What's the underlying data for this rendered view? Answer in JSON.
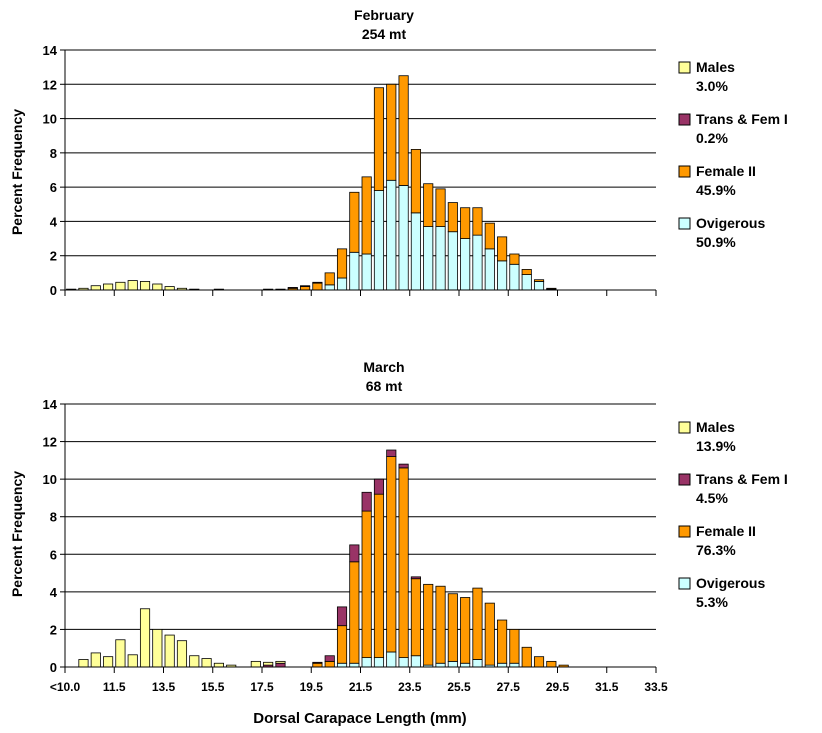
{
  "x_axis": {
    "label": "Dorsal Carapace Length (mm)",
    "tick_labels": [
      "<10.0",
      "11.5",
      "13.5",
      "15.5",
      "17.5",
      "19.5",
      "21.5",
      "23.5",
      "25.5",
      "27.5",
      "29.5",
      "31.5",
      "33.5"
    ]
  },
  "colors": {
    "males": "#ffff99",
    "trans": "#993366",
    "female2": "#ff9900",
    "ovigerous": "#ccffff",
    "outline": "#000000"
  },
  "chart_data": [
    {
      "type": "bar",
      "stacked": true,
      "title": "February",
      "subtitle": "254 mt",
      "ylabel": "Percent Frequency",
      "ylim": [
        0,
        14
      ],
      "yticks": [
        0,
        2,
        4,
        6,
        8,
        10,
        12,
        14
      ],
      "grid": true,
      "legend_position": "right",
      "categories": [
        "10.0",
        "10.5",
        "11.0",
        "11.5",
        "12.0",
        "12.5",
        "13.0",
        "13.5",
        "14.0",
        "14.5",
        "15.0",
        "15.5",
        "16.0",
        "16.5",
        "17.0",
        "17.5",
        "18.0",
        "18.5",
        "19.0",
        "19.5",
        "20.0",
        "20.5",
        "21.0",
        "21.5",
        "22.0",
        "22.5",
        "23.0",
        "23.5",
        "24.0",
        "24.5",
        "25.0",
        "25.5",
        "26.0",
        "26.5",
        "27.0",
        "27.5",
        "28.0",
        "28.5",
        "29.0",
        "29.5",
        "30.0",
        "30.5",
        "31.0",
        "31.5",
        "32.0",
        "32.5",
        "33.0",
        "33.5"
      ],
      "series": [
        {
          "name": "Males",
          "pct": "3.0%",
          "color": "#ffff99",
          "values": [
            0.05,
            0.1,
            0.25,
            0.35,
            0.45,
            0.55,
            0.5,
            0.35,
            0.2,
            0.1,
            0.05,
            0,
            0.05,
            0,
            0,
            0,
            0.05,
            0.05,
            0,
            0,
            0,
            0,
            0,
            0,
            0,
            0,
            0,
            0,
            0,
            0,
            0,
            0,
            0,
            0,
            0,
            0,
            0,
            0,
            0,
            0,
            0,
            0,
            0,
            0,
            0,
            0,
            0,
            0
          ]
        },
        {
          "name": "Trans & Fem I",
          "pct": "0.2%",
          "color": "#993366",
          "values": [
            0,
            0,
            0,
            0,
            0,
            0,
            0,
            0,
            0,
            0,
            0,
            0,
            0,
            0,
            0,
            0,
            0,
            0,
            0.05,
            0.05,
            0.05,
            0,
            0,
            0,
            0,
            0,
            0,
            0,
            0,
            0,
            0,
            0,
            0,
            0,
            0,
            0,
            0,
            0,
            0,
            0,
            0,
            0,
            0,
            0,
            0,
            0,
            0,
            0
          ]
        },
        {
          "name": "Female II",
          "pct": "45.9%",
          "color": "#ff9900",
          "values": [
            0,
            0,
            0,
            0,
            0,
            0,
            0,
            0,
            0,
            0,
            0,
            0,
            0,
            0,
            0,
            0,
            0,
            0,
            0.1,
            0.2,
            0.4,
            0.7,
            1.7,
            3.5,
            4.5,
            6.0,
            5.6,
            6.4,
            3.7,
            2.5,
            2.2,
            1.7,
            1.8,
            1.6,
            1.5,
            1.4,
            0.6,
            0.3,
            0.1,
            0.05,
            0,
            0,
            0,
            0,
            0,
            0,
            0,
            0
          ]
        },
        {
          "name": "Ovigerous",
          "pct": "50.9%",
          "color": "#ccffff",
          "values": [
            0,
            0,
            0,
            0,
            0,
            0,
            0,
            0,
            0,
            0,
            0,
            0,
            0,
            0,
            0,
            0,
            0,
            0,
            0,
            0,
            0,
            0.3,
            0.7,
            2.2,
            2.1,
            5.8,
            6.4,
            6.1,
            4.5,
            3.7,
            3.7,
            3.4,
            3.0,
            3.2,
            2.4,
            1.7,
            1.5,
            0.9,
            0.5,
            0.05,
            0,
            0,
            0,
            0,
            0,
            0,
            0,
            0
          ]
        }
      ]
    },
    {
      "type": "bar",
      "stacked": true,
      "title": "March",
      "subtitle": "68 mt",
      "ylabel": "Percent Frequency",
      "ylim": [
        0,
        14
      ],
      "yticks": [
        0,
        2,
        4,
        6,
        8,
        10,
        12,
        14
      ],
      "grid": true,
      "legend_position": "right",
      "categories": [
        "10.0",
        "10.5",
        "11.0",
        "11.5",
        "12.0",
        "12.5",
        "13.0",
        "13.5",
        "14.0",
        "14.5",
        "15.0",
        "15.5",
        "16.0",
        "16.5",
        "17.0",
        "17.5",
        "18.0",
        "18.5",
        "19.0",
        "19.5",
        "20.0",
        "20.5",
        "21.0",
        "21.5",
        "22.0",
        "22.5",
        "23.0",
        "23.5",
        "24.0",
        "24.5",
        "25.0",
        "25.5",
        "26.0",
        "26.5",
        "27.0",
        "27.5",
        "28.0",
        "28.5",
        "29.0",
        "29.5",
        "30.0",
        "30.5",
        "31.0",
        "31.5",
        "32.0",
        "32.5",
        "33.0",
        "33.5"
      ],
      "series": [
        {
          "name": "Males",
          "pct": "13.9%",
          "color": "#ffff99",
          "values": [
            0,
            0.4,
            0.75,
            0.55,
            1.45,
            0.65,
            3.1,
            2.0,
            1.7,
            1.4,
            0.6,
            0.45,
            0.2,
            0.1,
            0,
            0.3,
            0.15,
            0.1,
            0,
            0,
            0,
            0,
            0,
            0,
            0,
            0,
            0,
            0,
            0,
            0,
            0,
            0,
            0,
            0,
            0,
            0,
            0,
            0,
            0,
            0,
            0,
            0,
            0,
            0,
            0,
            0,
            0,
            0
          ]
        },
        {
          "name": "Trans & Fem I",
          "pct": "4.5%",
          "color": "#993366",
          "values": [
            0,
            0,
            0,
            0,
            0,
            0,
            0,
            0,
            0,
            0,
            0,
            0,
            0,
            0,
            0,
            0,
            0.1,
            0.2,
            0,
            0,
            0.05,
            0.3,
            1.0,
            0.9,
            1.0,
            0.8,
            0.35,
            0.2,
            0.1,
            0,
            0,
            0,
            0,
            0,
            0,
            0,
            0,
            0,
            0,
            0,
            0,
            0,
            0,
            0,
            0,
            0,
            0,
            0
          ]
        },
        {
          "name": "Female II",
          "pct": "76.3%",
          "color": "#ff9900",
          "values": [
            0,
            0,
            0,
            0,
            0,
            0,
            0,
            0,
            0,
            0,
            0,
            0,
            0,
            0,
            0,
            0,
            0,
            0,
            0,
            0,
            0.2,
            0.3,
            2.0,
            5.4,
            7.8,
            8.7,
            10.4,
            10.1,
            4.1,
            4.3,
            4.1,
            3.6,
            3.5,
            3.8,
            3.3,
            2.3,
            1.8,
            1.05,
            0.55,
            0.3,
            0.1,
            0,
            0,
            0,
            0,
            0,
            0,
            0
          ]
        },
        {
          "name": "Ovigerous",
          "pct": "5.3%",
          "color": "#ccffff",
          "values": [
            0,
            0,
            0,
            0,
            0,
            0,
            0,
            0,
            0,
            0,
            0,
            0,
            0,
            0,
            0,
            0,
            0,
            0,
            0,
            0,
            0,
            0,
            0.2,
            0.2,
            0.5,
            0.5,
            0.8,
            0.5,
            0.6,
            0.1,
            0.2,
            0.3,
            0.2,
            0.4,
            0.1,
            0.2,
            0.2,
            0,
            0,
            0,
            0,
            0,
            0,
            0,
            0,
            0,
            0,
            0
          ]
        }
      ]
    }
  ]
}
